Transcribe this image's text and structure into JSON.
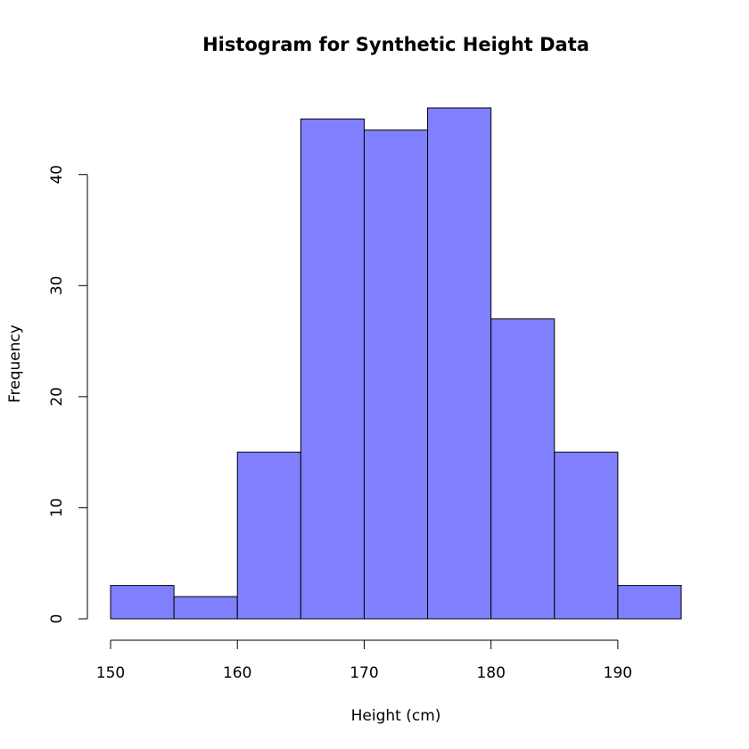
{
  "chart_data": {
    "type": "bar",
    "title": "Histogram for Synthetic Height Data",
    "xlabel": "Height (cm)",
    "ylabel": "Frequency",
    "bin_edges": [
      150,
      155,
      160,
      165,
      170,
      175,
      180,
      185,
      190,
      195
    ],
    "values": [
      3,
      2,
      15,
      45,
      44,
      46,
      27,
      15,
      3
    ],
    "x_ticks": [
      150,
      160,
      170,
      180,
      190
    ],
    "y_ticks": [
      0,
      10,
      20,
      30,
      40
    ],
    "xlim": [
      150,
      195
    ],
    "ylim": [
      0,
      46
    ],
    "bar_color": "#8080ff",
    "grid": false,
    "legend": "none"
  }
}
